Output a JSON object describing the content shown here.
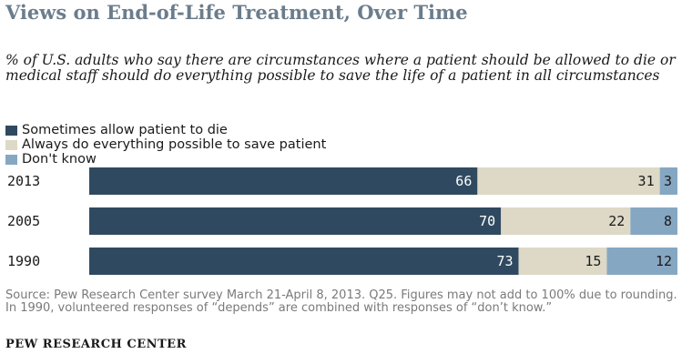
{
  "chart_data": {
    "type": "bar",
    "orientation": "horizontal",
    "stacked": true,
    "title": "Views on End-of-Life Treatment, Over Time",
    "subtitle": "% of U.S. adults who say there are circumstances where a patient should be allowed to die or medical staff should do everything possible to save the life of a patient in all circumstances",
    "categories": [
      "2013",
      "2005",
      "1990"
    ],
    "series": [
      {
        "name": "Sometimes allow patient to die",
        "values": [
          66,
          70,
          73
        ],
        "color": "#2f4a60",
        "label_color": "#ffffff"
      },
      {
        "name": "Always do everything possible to save patient",
        "values": [
          31,
          22,
          15
        ],
        "color": "#ddd9c6",
        "label_color": "#1a1a1a"
      },
      {
        "name": "Don't know",
        "values": [
          3,
          8,
          12
        ],
        "color": "#86a7c2",
        "label_color": "#1a1a1a"
      }
    ],
    "xlim": [
      0,
      100
    ],
    "grid": false,
    "legend_position": "top-left",
    "source": "Source: Pew Research Center survey March 21-April 8, 2013. Q25. Figures may not add to 100% due to rounding. In 1990, volunteered responses of “depends” are combined with responses of “don’t know.”"
  },
  "brand": "PEW RESEARCH  CENTER"
}
